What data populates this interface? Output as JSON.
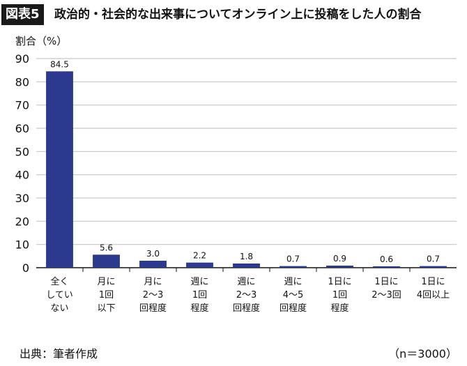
{
  "header": {
    "label": "図表5",
    "title": "政治的・社会的な出来事についてオンライン上に投稿をした人の割合"
  },
  "footer": {
    "source": "出典：筆者作成",
    "sample": "（n＝3000）"
  },
  "colors": {
    "bar": "#2b3a8f",
    "grid": "#c8c8c8",
    "axis": "#111111"
  },
  "chart_data": {
    "type": "bar",
    "title": "政治的・社会的な出来事についてオンライン上に投稿をした人の割合",
    "ylabel": "割合（%）",
    "xlabel": "",
    "ylim": [
      0,
      90
    ],
    "yticks": [
      0,
      10,
      20,
      30,
      40,
      50,
      60,
      70,
      80,
      90
    ],
    "grid": true,
    "categories": [
      "全くしていない",
      "月に1回以下",
      "月に2〜3回程度",
      "週に1回程度",
      "週に2〜3回程度",
      "週に4〜5回程度",
      "1日に1回程度",
      "1日に2〜3回",
      "1日に4回以上"
    ],
    "category_lines": [
      [
        "全く",
        "してい",
        "ない"
      ],
      [
        "月に",
        "1回",
        "以下"
      ],
      [
        "月に",
        "2〜3",
        "回程度"
      ],
      [
        "週に",
        "1回",
        "程度"
      ],
      [
        "週に",
        "2〜3",
        "回程度"
      ],
      [
        "週に",
        "4〜5",
        "回程度"
      ],
      [
        "1日に",
        "1回",
        "程度"
      ],
      [
        "1日に",
        "2〜3回"
      ],
      [
        "1日に",
        "4回以上"
      ]
    ],
    "values": [
      84.5,
      5.6,
      3.0,
      2.2,
      1.8,
      0.7,
      0.9,
      0.6,
      0.7
    ],
    "value_labels": [
      "84.5",
      "5.6",
      "3.0",
      "2.2",
      "1.8",
      "0.7",
      "0.9",
      "0.6",
      "0.7"
    ]
  }
}
